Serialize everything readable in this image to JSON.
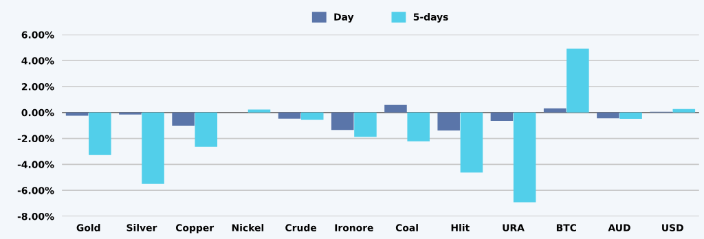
{
  "chart_data": {
    "type": "bar",
    "categories": [
      "Gold",
      "Silver",
      "Copper",
      "Nickel",
      "Crude",
      "Ironore",
      "Coal",
      "Hlit",
      "URA",
      "BTC",
      "AUD",
      "USD"
    ],
    "series": [
      {
        "name": "Day",
        "color": "#5a75a9",
        "values": [
          -0.25,
          -0.15,
          -1.02,
          0,
          -0.47,
          -1.35,
          0.58,
          -1.39,
          -0.65,
          0.32,
          -0.45,
          0.05
        ]
      },
      {
        "name": "5-days",
        "color": "#52cfea",
        "values": [
          -3.28,
          -5.5,
          -2.64,
          0.23,
          -0.56,
          -1.87,
          -2.22,
          -4.63,
          -6.92,
          4.92,
          -0.49,
          0.27
        ]
      }
    ],
    "ylim": [
      -8,
      6
    ],
    "yticks": [
      {
        "value": -8,
        "label": "-8.00%"
      },
      {
        "value": -6,
        "label": "-6.00%"
      },
      {
        "value": -4,
        "label": "-4.00%"
      },
      {
        "value": -2,
        "label": "-2.00%"
      },
      {
        "value": 0,
        "label": "0.00%"
      },
      {
        "value": 2,
        "label": "2.00%"
      },
      {
        "value": 4,
        "label": "4.00%"
      },
      {
        "value": 6,
        "label": "6.00%"
      }
    ],
    "grid": "y",
    "legend": "top"
  }
}
